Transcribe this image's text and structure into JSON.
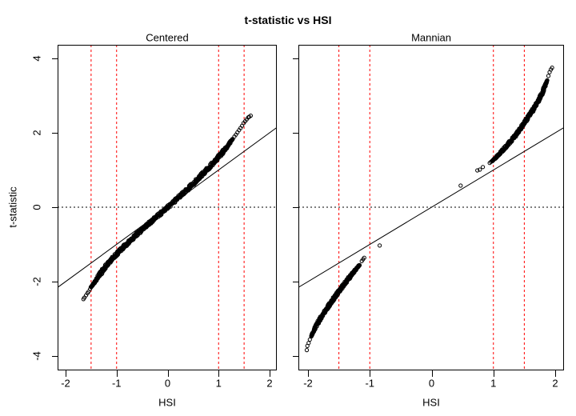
{
  "figure": {
    "title": "t-statistic vs HSI"
  },
  "colors": {
    "background": "#FFFFFF",
    "foreground": "#000000",
    "reference_red": "#FF0000"
  },
  "chart_data": [
    {
      "type": "scatter",
      "title": "Centered",
      "xlabel": "HSI",
      "ylabel": "t-statistic",
      "xlim": [
        -2.15,
        2.15
      ],
      "ylim": [
        -4.37,
        4.37
      ],
      "x_ticks": [
        -2,
        -1,
        0,
        1,
        2
      ],
      "y_ticks": [
        -4,
        -2,
        0,
        2,
        4
      ],
      "y_tick_labels_shown": true,
      "grid": false,
      "marker": "open-circle",
      "red_dashed_vlines": [
        -1.5,
        -1,
        1,
        1.5
      ],
      "dotted_hline": 0,
      "identity_line": {
        "intercept": 0,
        "slope": 1
      },
      "dense_branches": [
        [
          [
            -1.5,
            -2.15
          ],
          [
            -1.42,
            -1.99
          ],
          [
            -1.33,
            -1.81
          ],
          [
            -1.24,
            -1.64
          ],
          [
            -1.15,
            -1.48
          ],
          [
            -1.05,
            -1.33
          ],
          [
            -0.95,
            -1.19
          ],
          [
            -0.85,
            -1.05
          ],
          [
            -0.75,
            -0.92
          ],
          [
            -0.65,
            -0.79
          ],
          [
            -0.55,
            -0.66
          ],
          [
            -0.45,
            -0.54
          ],
          [
            -0.35,
            -0.42
          ],
          [
            -0.25,
            -0.3
          ],
          [
            -0.15,
            -0.18
          ],
          [
            -0.05,
            -0.06
          ],
          [
            0.05,
            0.06
          ],
          [
            0.15,
            0.18
          ],
          [
            0.25,
            0.31
          ],
          [
            0.35,
            0.43
          ],
          [
            0.45,
            0.56
          ],
          [
            0.55,
            0.7
          ],
          [
            0.65,
            0.84
          ],
          [
            0.75,
            0.98
          ],
          [
            0.85,
            1.13
          ],
          [
            0.95,
            1.27
          ],
          [
            1.05,
            1.43
          ],
          [
            1.15,
            1.6
          ],
          [
            1.22,
            1.73
          ],
          [
            1.28,
            1.85
          ]
        ]
      ],
      "sparse_points": [
        [
          -1.65,
          -2.47
        ],
        [
          -1.63,
          -2.43
        ],
        [
          -1.6,
          -2.37
        ],
        [
          -1.57,
          -2.31
        ],
        [
          -1.55,
          -2.27
        ],
        [
          -1.52,
          -2.2
        ],
        [
          1.31,
          1.9
        ],
        [
          1.34,
          1.95
        ],
        [
          1.37,
          2.01
        ],
        [
          1.4,
          2.07
        ],
        [
          1.43,
          2.13
        ],
        [
          1.46,
          2.19
        ],
        [
          1.49,
          2.26
        ],
        [
          1.52,
          2.31
        ],
        [
          1.55,
          2.36
        ],
        [
          1.58,
          2.41
        ],
        [
          1.6,
          2.43
        ],
        [
          1.63,
          2.46
        ]
      ]
    },
    {
      "type": "scatter",
      "title": "Mannian",
      "xlabel": "HSI",
      "ylabel": "",
      "xlim": [
        -2.15,
        2.15
      ],
      "ylim": [
        -4.37,
        4.37
      ],
      "x_ticks": [
        -2,
        -1,
        0,
        1,
        2
      ],
      "y_ticks": [
        -4,
        -2,
        0,
        2,
        4
      ],
      "y_tick_labels_shown": false,
      "grid": false,
      "marker": "open-circle",
      "red_dashed_vlines": [
        -1.5,
        -1,
        1,
        1.5
      ],
      "dotted_hline": 0,
      "identity_line": {
        "intercept": 0,
        "slope": 1
      },
      "dense_branches": [
        [
          [
            -1.95,
            -3.47
          ],
          [
            -1.9,
            -3.3
          ],
          [
            -1.85,
            -3.14
          ],
          [
            -1.8,
            -2.99
          ],
          [
            -1.75,
            -2.86
          ],
          [
            -1.7,
            -2.73
          ],
          [
            -1.65,
            -2.61
          ],
          [
            -1.6,
            -2.49
          ],
          [
            -1.55,
            -2.37
          ],
          [
            -1.5,
            -2.26
          ],
          [
            -1.45,
            -2.15
          ],
          [
            -1.4,
            -2.04
          ],
          [
            -1.35,
            -1.93
          ],
          [
            -1.3,
            -1.83
          ],
          [
            -1.25,
            -1.72
          ],
          [
            -1.2,
            -1.62
          ],
          [
            -1.16,
            -1.54
          ]
        ],
        [
          [
            0.98,
            1.24
          ],
          [
            1.05,
            1.35
          ],
          [
            1.12,
            1.48
          ],
          [
            1.2,
            1.62
          ],
          [
            1.28,
            1.78
          ],
          [
            1.35,
            1.92
          ],
          [
            1.42,
            2.08
          ],
          [
            1.5,
            2.27
          ],
          [
            1.58,
            2.46
          ],
          [
            1.65,
            2.64
          ],
          [
            1.72,
            2.85
          ],
          [
            1.78,
            3.04
          ],
          [
            1.83,
            3.24
          ],
          [
            1.87,
            3.43
          ]
        ]
      ],
      "sparse_points": [
        [
          -2.02,
          -3.84
        ],
        [
          -2.01,
          -3.73
        ],
        [
          -1.99,
          -3.65
        ],
        [
          -1.97,
          -3.56
        ],
        [
          -1.13,
          -1.45
        ],
        [
          -1.11,
          -1.4
        ],
        [
          -1.09,
          -1.36
        ],
        [
          -0.84,
          -1.03
        ],
        [
          0.47,
          0.58
        ],
        [
          0.74,
          0.99
        ],
        [
          0.78,
          1.01
        ],
        [
          0.83,
          1.08
        ],
        [
          0.94,
          1.19
        ],
        [
          0.96,
          1.22
        ],
        [
          1.89,
          3.53
        ],
        [
          1.91,
          3.63
        ],
        [
          1.93,
          3.7
        ],
        [
          1.95,
          3.75
        ]
      ]
    }
  ]
}
